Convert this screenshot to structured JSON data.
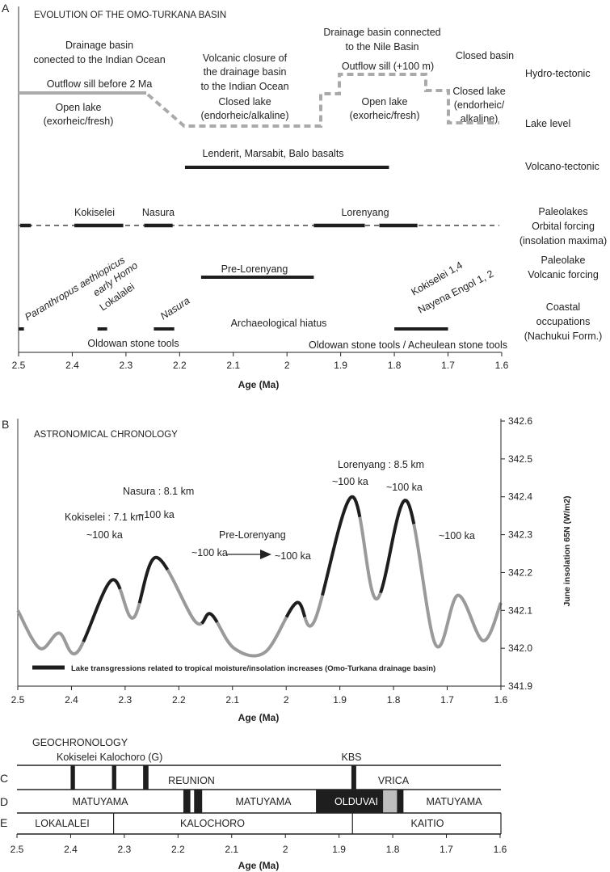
{
  "panel_a": {
    "letter": "A",
    "title": "EVOLUTION OF THE OMO-TURKANA BASIN",
    "hydro": {
      "indian_1": "Drainage basin",
      "indian_2": "conected to the Indian Ocean",
      "closure_1": "Volcanic closure of",
      "closure_2": "the drainage basin",
      "closure_3": "to the Indian Ocean",
      "nile_1": "Drainage basin connected",
      "nile_2": "to the Nile Basin",
      "closed_basin": "Closed basin",
      "sill_100": "Outflow sill (+100 m)",
      "sill_before": "Outflow sill before 2 Ma",
      "open1_1": "Open lake",
      "open1_2": "(exorheic/fresh)",
      "closed1_1": "Closed lake",
      "closed1_2": "(endorheic/alkaline)",
      "open2_1": "Open lake",
      "open2_2": "(exorheic/fresh)",
      "closed2_1": "Closed lake",
      "closed2_2": "(endorheic/",
      "closed2_3": "alkaline)",
      "line_colors": {
        "sill": "#aaaaaa",
        "lake": "#aaaaaa"
      }
    },
    "volcano": {
      "label": "Lenderit, Marsabit, Balo basalts",
      "range": [
        2.19,
        1.81
      ]
    },
    "paleolakes": {
      "labels": {
        "kokiselei": "Kokiselei",
        "nasura": "Nasura",
        "lorenyang": "Lorenyang"
      },
      "bars": [
        [
          2.497,
          2.477
        ],
        [
          2.396,
          2.305
        ],
        [
          2.266,
          2.213
        ],
        [
          1.95,
          1.855
        ],
        [
          1.828,
          1.757
        ]
      ]
    },
    "pre_lorenyang": {
      "label": "Pre-Lorenyang",
      "range": [
        2.16,
        1.95
      ]
    },
    "occupations": {
      "paranthropus": "Paranthropus aethiopicus",
      "early_homo": "early Homo",
      "lokalalei": "Lokalalei",
      "nasura": "Nasura",
      "kokiselei": "Kokiselei 1,4",
      "nayena": "Nayena Engol 1, 2",
      "hiatus": "Archaeological hiatus",
      "oldowan": "Oldowan stone tools",
      "oldowan_acheulean": "Oldowan stone tools  / Acheulean stone tools",
      "bars": [
        [
          2.5,
          2.49
        ],
        [
          2.353,
          2.335
        ],
        [
          2.248,
          2.21
        ],
        [
          1.8,
          1.7
        ]
      ]
    },
    "right_labels": {
      "hydro": "Hydro-tectonic",
      "lake_level": "Lake level",
      "volcano": "Volcano-tectonic",
      "paleo_1": "Paleolakes",
      "paleo_2": "Orbital forcing",
      "paleo_3": "(insolation maxima)",
      "volc_1": "Paleolake",
      "volc_2": "Volcanic forcing",
      "coast_1": "Coastal",
      "coast_2": "occupations",
      "coast_3": "(Nachukui Form.)"
    },
    "xlabel": "Age (Ma)",
    "xticks": [
      "2.5",
      "2.4",
      "2.3",
      "2.2",
      "2.1",
      "2",
      "1.9",
      "1.8",
      "1.7",
      "1.6"
    ]
  },
  "chart_data": {
    "type": "line",
    "letter": "B",
    "title": "ASTRONOMICAL CHRONOLOGY",
    "xlabel": "Age (Ma)",
    "ylabel": "June insolation 65N (W/m2)",
    "xlim": [
      2.5,
      1.6
    ],
    "ylim": [
      341.9,
      342.6
    ],
    "xticks": [
      "2.5",
      "2.4",
      "2.3",
      "2.2",
      "2.1",
      "2",
      "1.9",
      "1.8",
      "1.7",
      "1.6"
    ],
    "yticks": [
      "342.6",
      "342.5",
      "342.4",
      "342.3",
      "342.2",
      "342.1",
      "342.0",
      "341.9"
    ],
    "x": [
      2.5,
      2.459,
      2.423,
      2.389,
      2.325,
      2.285,
      2.242,
      2.169,
      2.14,
      2.097,
      2.039,
      1.981,
      1.948,
      1.878,
      1.832,
      1.776,
      1.722,
      1.68,
      1.633,
      1.6
    ],
    "y": [
      342.1,
      342.0,
      342.04,
      341.99,
      342.18,
      342.08,
      342.24,
      342.07,
      342.09,
      342.0,
      341.99,
      342.12,
      342.07,
      342.4,
      342.13,
      342.39,
      342.01,
      342.14,
      342.02,
      342.12
    ],
    "highlight_ranges": [
      [
        2.378,
        2.311
      ],
      [
        2.274,
        2.222
      ],
      [
        2.158,
        2.129
      ],
      [
        2.002,
        1.966
      ],
      [
        1.934,
        1.865
      ],
      [
        1.825,
        1.763
      ]
    ],
    "colors": {
      "curve": "#9a9a9a",
      "highlight": "#1e1e1e"
    },
    "legend": "Lake transgressions related to tropical moisture/insolation increases (Omo-Turkana drainage basin)",
    "annotations": {
      "lorenyang": "Lorenyang : 8.5 km",
      "nasura": "Nasura : 8.1 km",
      "kokiselei": "Kokiselei : 7.1 km",
      "pre_lorenyang": "Pre-Lorenyang",
      "cycles": [
        "~100 ka",
        "~100 ka",
        "~100 ka",
        "~100 ka",
        "~100 ka",
        "~100 ka",
        "~100 ka"
      ]
    }
  },
  "panel_cde": {
    "title": "GEOCHRONOLOGY",
    "row_letters": [
      "C",
      "D",
      "E"
    ],
    "tephra_label": "Kokiselei Kalochoro (G)",
    "kbs_label": "KBS",
    "tephra_bars": [
      [
        2.4,
        2.392
      ],
      [
        2.323,
        2.315
      ],
      [
        2.265,
        2.255
      ],
      [
        1.877,
        1.868
      ]
    ],
    "reunion": "REUNION",
    "vrica": "VRICA",
    "matuyama": [
      "MATUYAMA",
      "MATUYAMA",
      "MATUYAMA"
    ],
    "olduvai": "OLDUVAI",
    "reunion_bars": [
      [
        2.19,
        2.177
      ],
      [
        2.17,
        2.155
      ]
    ],
    "olduvai_range": [
      1.943,
      1.78
    ],
    "olduvai_gray_range": [
      1.818,
      1.792
    ],
    "members": [
      "LOKALALEI",
      "KALOCHORO",
      "KAITIO"
    ],
    "member_boundaries": [
      2.32,
      1.875
    ],
    "xlabel": "Age (Ma)",
    "xticks": [
      "2.5",
      "2.4",
      "2.3",
      "2.2",
      "2.1",
      "2",
      "1.9",
      "1.8",
      "1.7",
      "1.6"
    ],
    "colors": {
      "black": "#1e1e1e",
      "gray": "#bdbdbd"
    }
  }
}
